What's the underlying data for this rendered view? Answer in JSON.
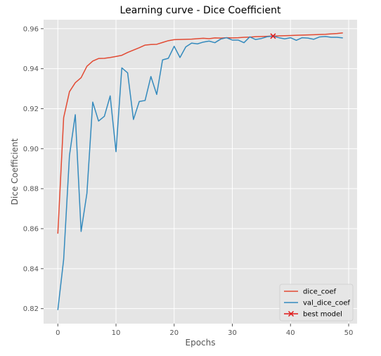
{
  "chart_data": {
    "type": "line",
    "title": "Learning curve - Dice Coefficient",
    "xlabel": "Epochs",
    "ylabel": "Dice Coefficient",
    "xlim": [
      -2.45,
      51.45
    ],
    "ylim": [
      0.8125,
      0.9645
    ],
    "xticks": [
      0,
      10,
      20,
      30,
      40,
      50
    ],
    "yticks": [
      0.82,
      0.84,
      0.86,
      0.88,
      0.9,
      0.92,
      0.94,
      0.96
    ],
    "ytick_labels": [
      "0.82",
      "0.84",
      "0.86",
      "0.88",
      "0.90",
      "0.92",
      "0.94",
      "0.96"
    ],
    "grid": true,
    "legend_position": "lower right",
    "colors": {
      "background": "#e5e5e5",
      "grid": "#ffffff",
      "dice_coef": "#e24a33",
      "val_dice_coef": "#348abd",
      "best_model": "#e01a1a"
    },
    "series": [
      {
        "name": "dice_coef",
        "color": "#e24a33",
        "x": [
          0,
          1,
          2,
          3,
          4,
          5,
          6,
          7,
          8,
          9,
          10,
          11,
          12,
          13,
          14,
          15,
          16,
          17,
          18,
          19,
          20,
          21,
          22,
          23,
          24,
          25,
          26,
          27,
          28,
          29,
          30,
          31,
          32,
          33,
          34,
          35,
          36,
          37,
          38,
          39,
          40,
          41,
          42,
          43,
          44,
          45,
          46,
          47,
          48,
          49
        ],
        "values": [
          0.8575,
          0.9155,
          0.9285,
          0.933,
          0.9355,
          0.9412,
          0.9438,
          0.9451,
          0.9452,
          0.9456,
          0.9461,
          0.9467,
          0.9481,
          0.9493,
          0.9505,
          0.9518,
          0.9521,
          0.9522,
          0.9531,
          0.954,
          0.9545,
          0.9546,
          0.9547,
          0.9548,
          0.955,
          0.9552,
          0.955,
          0.9554,
          0.9553,
          0.9555,
          0.9554,
          0.9555,
          0.9557,
          0.9558,
          0.956,
          0.9561,
          0.9562,
          0.9563,
          0.9564,
          0.9565,
          0.9566,
          0.9567,
          0.9568,
          0.9569,
          0.957,
          0.9571,
          0.9572,
          0.9574,
          0.9576,
          0.9579
        ]
      },
      {
        "name": "val_dice_coef",
        "color": "#348abd",
        "x": [
          0,
          1,
          2,
          3,
          4,
          5,
          6,
          7,
          8,
          9,
          10,
          11,
          12,
          13,
          14,
          15,
          16,
          17,
          18,
          19,
          20,
          21,
          22,
          23,
          24,
          25,
          26,
          27,
          28,
          29,
          30,
          31,
          32,
          33,
          34,
          35,
          36,
          37,
          38,
          39,
          40,
          41,
          42,
          43,
          44,
          45,
          46,
          47,
          48,
          49
        ],
        "values": [
          0.8193,
          0.8446,
          0.8966,
          0.917,
          0.8586,
          0.8777,
          0.9233,
          0.9138,
          0.9162,
          0.9264,
          0.8985,
          0.9404,
          0.9379,
          0.9146,
          0.9236,
          0.9241,
          0.9361,
          0.9271,
          0.9444,
          0.9452,
          0.9512,
          0.9456,
          0.9509,
          0.9528,
          0.9524,
          0.9533,
          0.9538,
          0.953,
          0.9548,
          0.9555,
          0.9543,
          0.9543,
          0.953,
          0.9559,
          0.9546,
          0.9551,
          0.956,
          0.9563,
          0.9555,
          0.9549,
          0.9555,
          0.9542,
          0.9555,
          0.9553,
          0.9547,
          0.9559,
          0.9561,
          0.9557,
          0.9557,
          0.9554
        ]
      },
      {
        "name": "best model",
        "color": "#e01a1a",
        "marker": "x",
        "x": [
          37
        ],
        "values": [
          0.9563
        ]
      }
    ]
  }
}
